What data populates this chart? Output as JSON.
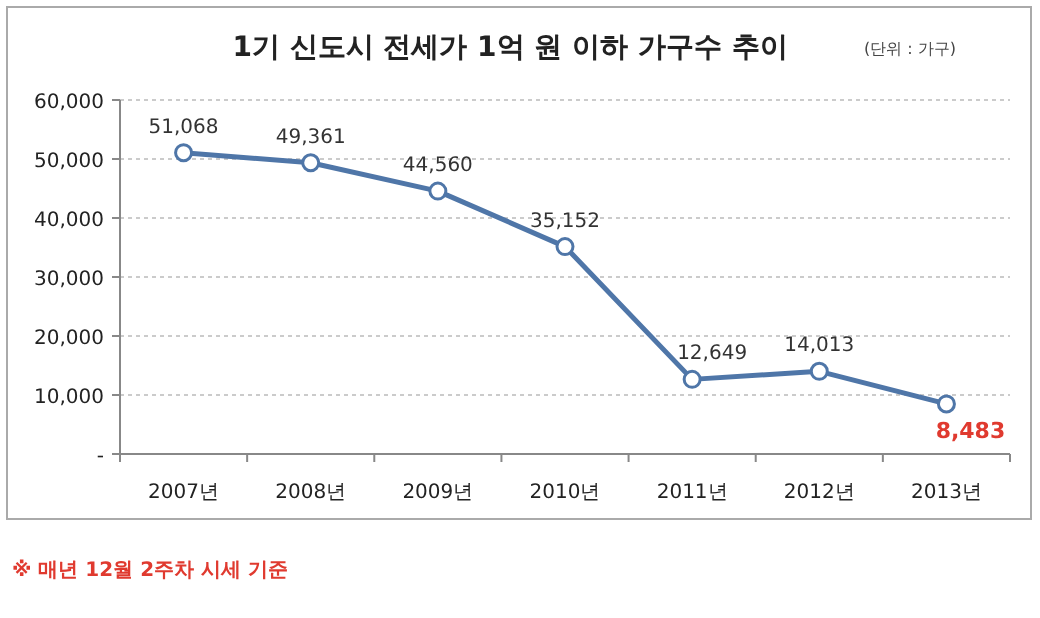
{
  "chart_data": {
    "type": "line",
    "title": "1기 신도시 전세가 1억 원 이하 가구수 추이",
    "subtitle": "(단위 : 가구)",
    "categories": [
      "2007년",
      "2008년",
      "2009년",
      "2010년",
      "2011년",
      "2012년",
      "2013년"
    ],
    "series": [
      {
        "color": "#4f76a8",
        "values": [
          51068,
          49361,
          44560,
          35152,
          12649,
          14013,
          8483
        ],
        "value_labels": [
          "51,068",
          "49,361",
          "44,560",
          "35,152",
          "12,649",
          "14,013",
          null
        ]
      }
    ],
    "ylim": [
      0,
      60000
    ],
    "yticks": [
      {
        "value": 0,
        "label": "-"
      },
      {
        "value": 10000,
        "label": "10,000"
      },
      {
        "value": 20000,
        "label": "20,000"
      },
      {
        "value": 30000,
        "label": "30,000"
      },
      {
        "value": 40000,
        "label": "40,000"
      },
      {
        "value": 50000,
        "label": "50,000"
      },
      {
        "value": 60000,
        "label": "60,000"
      }
    ],
    "grid": "y",
    "marker": "circle",
    "line_style": "solid",
    "annotations": [
      {
        "text": "8,483",
        "x": "2013년",
        "y": 8483
      },
      "※ 매년 12월 2주차 시세 기준"
    ]
  }
}
